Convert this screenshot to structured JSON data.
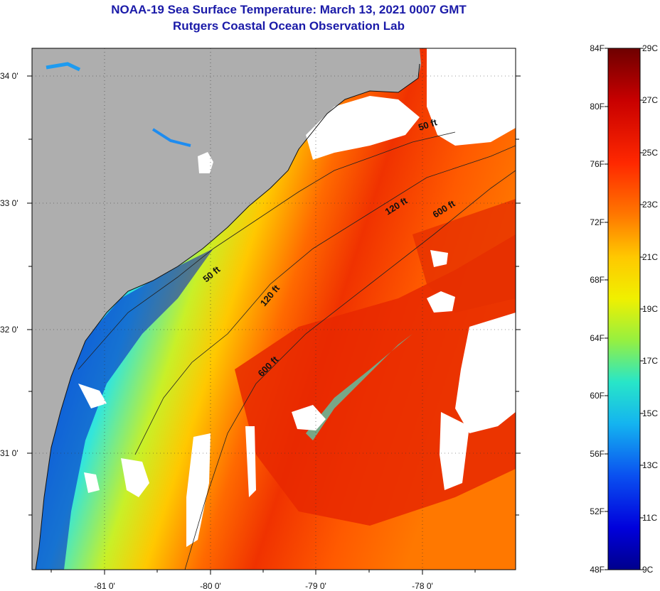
{
  "title": "NOAA-19 Sea Surface Temperature:  March 13, 2021 0007 GMT",
  "subtitle": "Rutgers Coastal Ocean Observation Lab",
  "lat_labels": [
    "34 0'",
    "33 0'",
    "32 0'",
    "31 0'"
  ],
  "lon_labels": [
    "-81 0'",
    "-80 0'",
    "-79 0'",
    "-78 0'"
  ],
  "contour_labels": [
    "50 ft",
    "120 ft",
    "600 ft",
    "50 ft",
    "120 ft",
    "600 ft"
  ],
  "colorbar": {
    "fahrenheit": [
      "84F",
      "80F",
      "76F",
      "72F",
      "68F",
      "64F",
      "60F",
      "56F",
      "52F",
      "48F"
    ],
    "celsius": [
      "29C",
      "27C",
      "25C",
      "23C",
      "21C",
      "19C",
      "17C",
      "15C",
      "13C",
      "11C",
      "9C"
    ]
  },
  "colors": {
    "land": "#aeaeae",
    "cloud": "#ffffff",
    "title": "#1a1aa8"
  }
}
